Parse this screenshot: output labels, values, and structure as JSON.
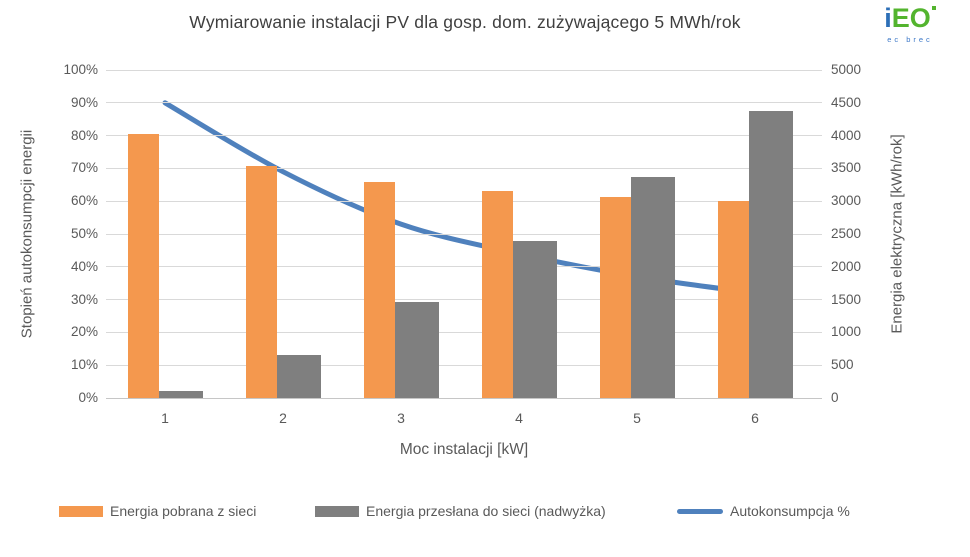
{
  "title": "Wymiarowanie instalacji PV dla gosp. dom. zużywającego 5 MWh/rok",
  "logo": {
    "part1": "i",
    "part2": "EO",
    "subtext": "ec brec"
  },
  "colors": {
    "orange": "#F4984E",
    "gray": "#7F7F7F",
    "blue": "#4F81BD",
    "gridline": "#D9D9D9",
    "text": "#595959"
  },
  "chart_data": {
    "type": "bar+line combo",
    "title": "Wymiarowanie instalacji PV dla gosp. dom. zużywającego 5 MWh/rok",
    "categories": [
      "1",
      "2",
      "3",
      "4",
      "5",
      "6"
    ],
    "series": [
      {
        "name": "Energia pobrana z sieci",
        "type": "bar",
        "axis": "right",
        "color": "#F4984E",
        "values": [
          4030,
          3540,
          3290,
          3150,
          3060,
          3000
        ]
      },
      {
        "name": "Energia przesłana do sieci (nadwyżka)",
        "type": "bar",
        "axis": "right",
        "color": "#7F7F7F",
        "values": [
          110,
          650,
          1470,
          2390,
          3370,
          4370
        ]
      },
      {
        "name": "Autokonsumpcja %",
        "type": "line",
        "axis": "left",
        "color": "#4F81BD",
        "values": [
          90,
          69,
          53,
          44,
          37,
          32
        ]
      }
    ],
    "x_axis": {
      "title": "Moc instalacji [kW]",
      "labels": [
        "1",
        "2",
        "3",
        "4",
        "5",
        "6"
      ]
    },
    "left_axis": {
      "title": "Stopień autokonsumpcji energii",
      "min": 0,
      "max": 100,
      "step": 10,
      "format": "percent",
      "tick_labels": [
        "0%",
        "10%",
        "20%",
        "30%",
        "40%",
        "50%",
        "60%",
        "70%",
        "80%",
        "90%",
        "100%"
      ]
    },
    "right_axis": {
      "title": "Energia elektryczna [kWh/rok]",
      "min": 0,
      "max": 5000,
      "step": 500,
      "tick_labels": [
        "0",
        "500",
        "1000",
        "1500",
        "2000",
        "2500",
        "3000",
        "3500",
        "4000",
        "4500",
        "5000"
      ]
    },
    "legend": {
      "position": "bottom",
      "entries": [
        "Energia pobrana z sieci",
        "Energia przesłana do sieci (nadwyżka)",
        "Autokonsumpcja %"
      ]
    },
    "grid": "horizontal"
  }
}
